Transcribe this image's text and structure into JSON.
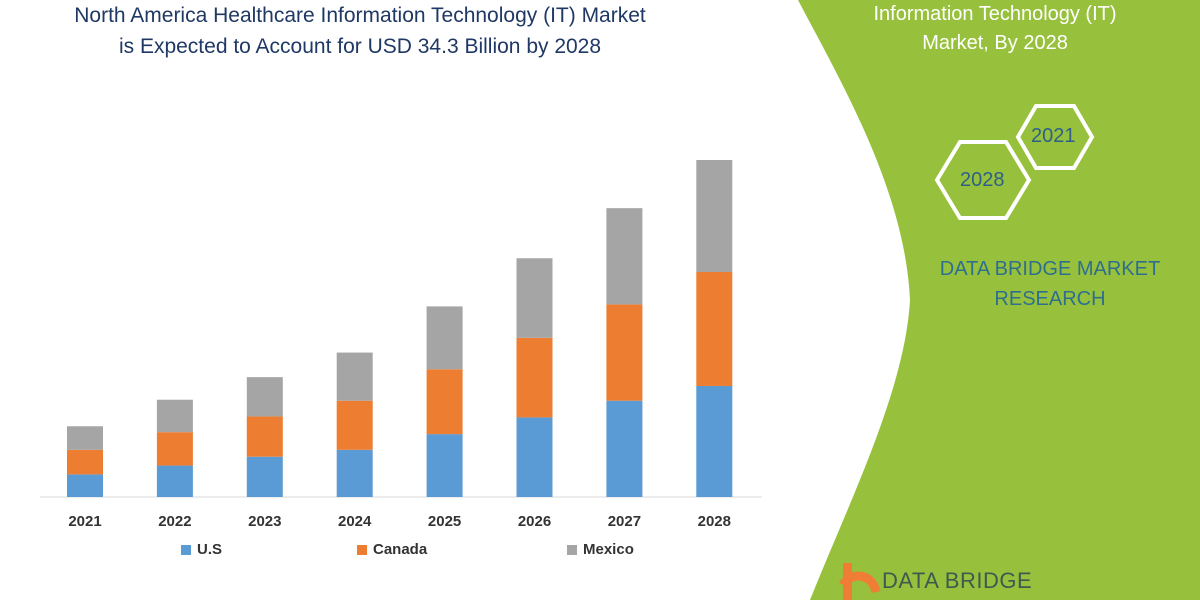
{
  "header": {
    "title_line1": "North America Healthcare Information Technology (IT) Market",
    "title_line2": "is Expected to Account for USD 34.3 Billion by 2028"
  },
  "side_panel": {
    "title_line1": "Information Technology (IT)",
    "title_line2": "Market, By 2028",
    "hex_years": [
      "2021",
      "2028"
    ],
    "brand_line1": "DATA BRIDGE MARKET",
    "brand_line2": "RESEARCH",
    "accent_color": "#97c13c"
  },
  "logo": {
    "text": "DATA BRIDGE",
    "icon": "bridge-b-logo-icon"
  },
  "watermark": "DATA BRIDGE",
  "chart_data": {
    "type": "bar",
    "stacked": true,
    "categories": [
      "2021",
      "2022",
      "2023",
      "2024",
      "2025",
      "2026",
      "2027",
      "2028"
    ],
    "series": [
      {
        "name": "U.S",
        "color": "#5b9bd5",
        "values": [
          2.3,
          3.2,
          4.1,
          4.8,
          6.4,
          8.1,
          9.8,
          11.3
        ]
      },
      {
        "name": "Canada",
        "color": "#ed7d31",
        "values": [
          2.5,
          3.4,
          4.1,
          5.0,
          6.6,
          8.1,
          9.8,
          11.6
        ]
      },
      {
        "name": "Mexico",
        "color": "#a5a5a5",
        "values": [
          2.4,
          3.3,
          4.0,
          4.9,
          6.4,
          8.1,
          9.8,
          11.4
        ]
      }
    ],
    "title": "",
    "xlabel": "",
    "ylabel": "",
    "ylim": [
      0,
      34.3
    ],
    "grid": false,
    "legend": "bottom"
  }
}
